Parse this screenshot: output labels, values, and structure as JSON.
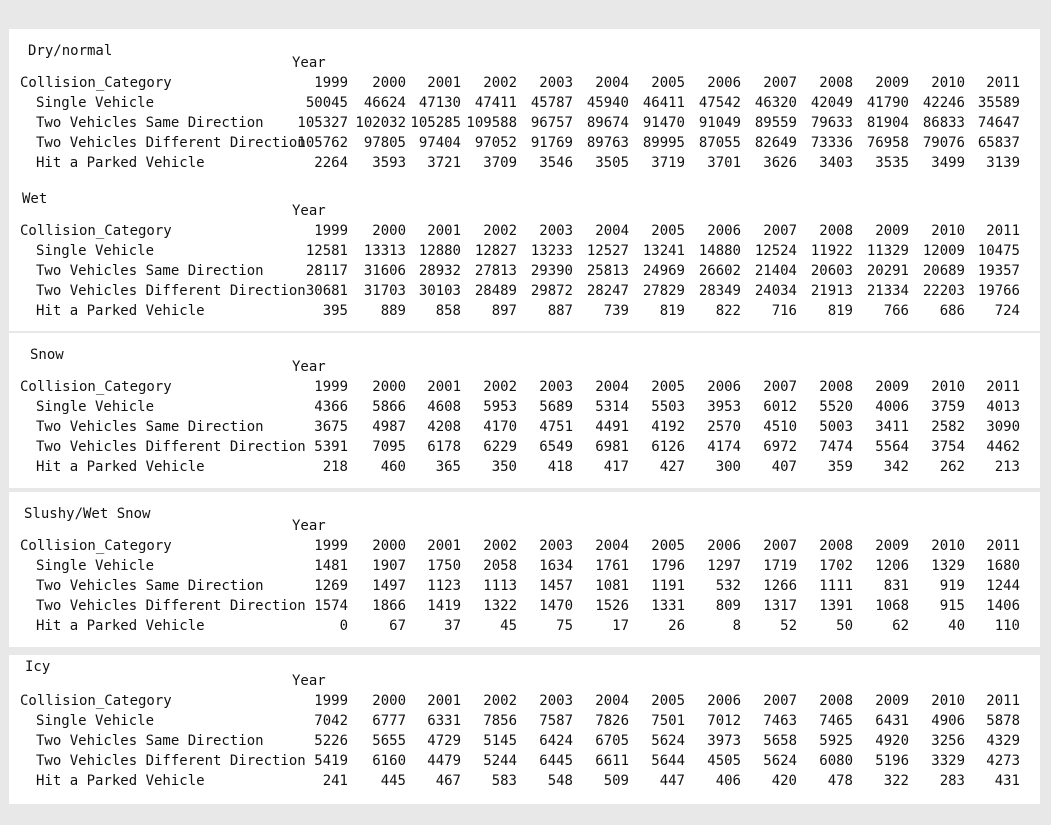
{
  "year_label": "Year",
  "row_header": "Collision_Category",
  "years": [
    "1999",
    "2000",
    "2001",
    "2002",
    "2003",
    "2004",
    "2005",
    "2006",
    "2007",
    "2008",
    "2009",
    "2010",
    "2011"
  ],
  "categories": [
    "Single Vehicle",
    "Two Vehicles Same Direction",
    "Two Vehicles Different Direction",
    "Hit a Parked Vehicle"
  ],
  "tables": [
    {
      "condition": "Dry/normal",
      "rows": [
        [
          "50045",
          "46624",
          "47130",
          "47411",
          "45787",
          "45940",
          "46411",
          "47542",
          "46320",
          "42049",
          "41790",
          "42246",
          "35589"
        ],
        [
          "105327",
          "102032",
          "105285",
          "109588",
          "96757",
          "89674",
          "91470",
          "91049",
          "89559",
          "79633",
          "81904",
          "86833",
          "74647"
        ],
        [
          "105762",
          "97805",
          "97404",
          "97052",
          "91769",
          "89763",
          "89995",
          "87055",
          "82649",
          "73336",
          "76958",
          "79076",
          "65837"
        ],
        [
          "2264",
          "3593",
          "3721",
          "3709",
          "3546",
          "3505",
          "3719",
          "3701",
          "3626",
          "3403",
          "3535",
          "3499",
          "3139"
        ]
      ]
    },
    {
      "condition": "Wet",
      "rows": [
        [
          "12581",
          "13313",
          "12880",
          "12827",
          "13233",
          "12527",
          "13241",
          "14880",
          "12524",
          "11922",
          "11329",
          "12009",
          "10475"
        ],
        [
          "28117",
          "31606",
          "28932",
          "27813",
          "29390",
          "25813",
          "24969",
          "26602",
          "21404",
          "20603",
          "20291",
          "20689",
          "19357"
        ],
        [
          "30681",
          "31703",
          "30103",
          "28489",
          "29872",
          "28247",
          "27829",
          "28349",
          "24034",
          "21913",
          "21334",
          "22203",
          "19766"
        ],
        [
          "395",
          "889",
          "858",
          "897",
          "887",
          "739",
          "819",
          "822",
          "716",
          "819",
          "766",
          "686",
          "724"
        ]
      ]
    },
    {
      "condition": "Snow",
      "rows": [
        [
          "4366",
          "5866",
          "4608",
          "5953",
          "5689",
          "5314",
          "5503",
          "3953",
          "6012",
          "5520",
          "4006",
          "3759",
          "4013"
        ],
        [
          "3675",
          "4987",
          "4208",
          "4170",
          "4751",
          "4491",
          "4192",
          "2570",
          "4510",
          "5003",
          "3411",
          "2582",
          "3090"
        ],
        [
          "5391",
          "7095",
          "6178",
          "6229",
          "6549",
          "6981",
          "6126",
          "4174",
          "6972",
          "7474",
          "5564",
          "3754",
          "4462"
        ],
        [
          "218",
          "460",
          "365",
          "350",
          "418",
          "417",
          "427",
          "300",
          "407",
          "359",
          "342",
          "262",
          "213"
        ]
      ]
    },
    {
      "condition": "Slushy/Wet Snow",
      "rows": [
        [
          "1481",
          "1907",
          "1750",
          "2058",
          "1634",
          "1761",
          "1796",
          "1297",
          "1719",
          "1702",
          "1206",
          "1329",
          "1680"
        ],
        [
          "1269",
          "1497",
          "1123",
          "1113",
          "1457",
          "1081",
          "1191",
          "532",
          "1266",
          "1111",
          "831",
          "919",
          "1244"
        ],
        [
          "1574",
          "1866",
          "1419",
          "1322",
          "1470",
          "1526",
          "1331",
          "809",
          "1317",
          "1391",
          "1068",
          "915",
          "1406"
        ],
        [
          "0",
          "67",
          "37",
          "45",
          "75",
          "17",
          "26",
          "8",
          "52",
          "50",
          "62",
          "40",
          "110"
        ]
      ]
    },
    {
      "condition": "Icy",
      "rows": [
        [
          "7042",
          "6777",
          "6331",
          "7856",
          "7587",
          "7826",
          "7501",
          "7012",
          "7463",
          "7465",
          "6431",
          "4906",
          "5878"
        ],
        [
          "5226",
          "5655",
          "4729",
          "5145",
          "6424",
          "6705",
          "5624",
          "3973",
          "5658",
          "5925",
          "4920",
          "3256",
          "4329"
        ],
        [
          "5419",
          "6160",
          "4479",
          "5244",
          "6445",
          "6611",
          "5644",
          "4505",
          "5624",
          "6080",
          "5196",
          "3329",
          "4273"
        ],
        [
          "241",
          "445",
          "467",
          "583",
          "548",
          "509",
          "447",
          "406",
          "420",
          "478",
          "322",
          "283",
          "431"
        ]
      ]
    }
  ]
}
